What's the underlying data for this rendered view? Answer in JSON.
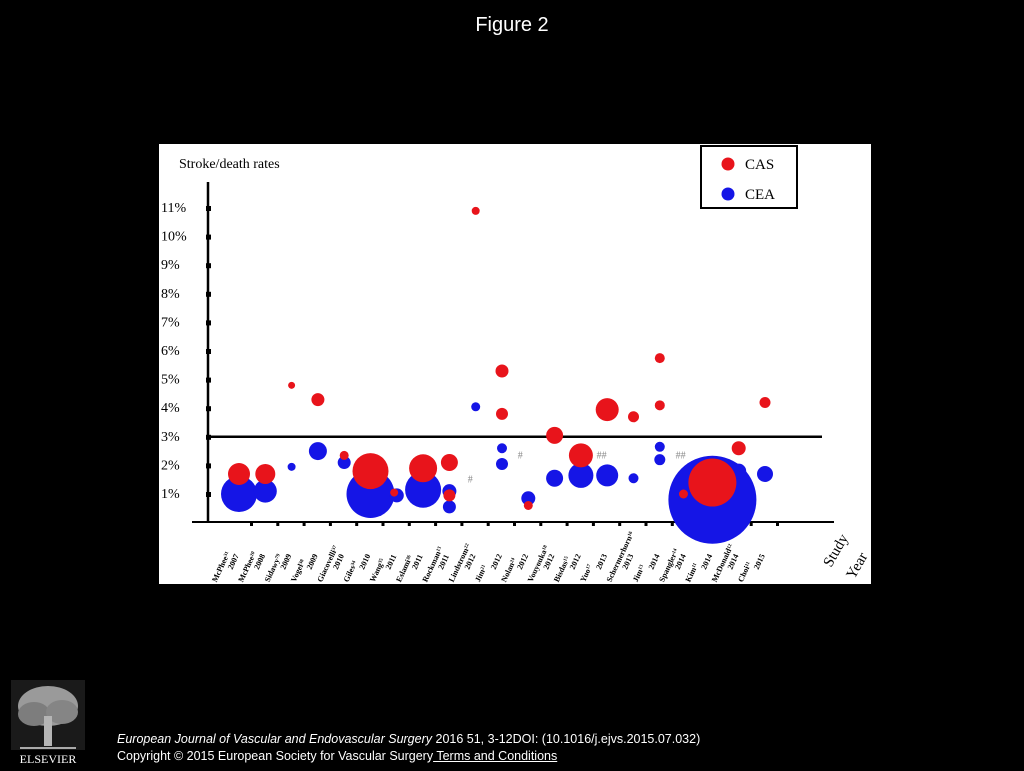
{
  "figure": {
    "title": "Figure 2"
  },
  "footer": {
    "journal": "European Journal of Vascular and Endovascular Surgery",
    "details": " 2016 51, 3-12DOI: (10.1016/j.ejvs.2015.07.032)",
    "copyright": "Copyright © 2015 European Society for Vascular Surgery",
    "terms": " Terms and Conditions",
    "publisher": "ELSEVIER"
  },
  "chart_data": {
    "type": "scatter",
    "style": "bubble",
    "ylabel": "Stroke/death rates",
    "xlabel_study": "Study",
    "xlabel_year": "Year",
    "yticks": [
      "1%",
      "2%",
      "3%",
      "4%",
      "5%",
      "6%",
      "7%",
      "8%",
      "9%",
      "10%",
      "11%"
    ],
    "threshold": 3,
    "legend_position": "top-right",
    "colors": {
      "CAS": "#e8141b",
      "CEA": "#1515e6"
    },
    "studies": [
      {
        "name": "McPhee",
        "ref": "31",
        "year": "2007"
      },
      {
        "name": "McPhee",
        "ref": "20",
        "year": "2008"
      },
      {
        "name": "Sidawy",
        "ref": "79",
        "year": "2009"
      },
      {
        "name": "Vogel",
        "ref": "38",
        "year": "2009"
      },
      {
        "name": "Giacovelli",
        "ref": "37",
        "year": "2010"
      },
      {
        "name": "Giles",
        "ref": "34",
        "year": "2010"
      },
      {
        "name": "Wang",
        "ref": "35",
        "year": "2011"
      },
      {
        "name": "Eslami",
        "ref": "36",
        "year": "2011"
      },
      {
        "name": "Rockman",
        "ref": "13",
        "year": "2011"
      },
      {
        "name": "Lindstrom",
        "ref": "22",
        "year": "2012"
      },
      {
        "name": "Jim",
        "ref": "21",
        "year": "2012"
      },
      {
        "name": "Nolan",
        "ref": "24",
        "year": "2012"
      },
      {
        "name": "Vouyouka",
        "ref": "18",
        "year": "2012"
      },
      {
        "name": "Bisdas",
        "ref": "15",
        "year": "2012"
      },
      {
        "name": "Yuo",
        "ref": "17",
        "year": "2013"
      },
      {
        "name": "Schermerhorn",
        "ref": "16",
        "year": "2013"
      },
      {
        "name": "Jim",
        "ref": "13",
        "year": "2014"
      },
      {
        "name": "Spangler",
        "ref": "14",
        "year": "2014"
      },
      {
        "name": "Kim",
        "ref": "11",
        "year": "2014"
      },
      {
        "name": "McDonald",
        "ref": "12",
        "year": "2014"
      },
      {
        "name": "Choi",
        "ref": "11",
        "year": "2015"
      }
    ],
    "series": [
      {
        "name": "CAS",
        "points": [
          {
            "x": 1,
            "y": 1.7,
            "size": 11
          },
          {
            "x": 2,
            "y": 1.7,
            "size": 10
          },
          {
            "x": 3,
            "y": 4.8,
            "size": 3.5
          },
          {
            "x": 4,
            "y": 4.3,
            "size": 6.5
          },
          {
            "x": 5,
            "y": 2.35,
            "size": 4.5
          },
          {
            "x": 6,
            "y": 1.8,
            "size": 18
          },
          {
            "x": 6.9,
            "y": 1.05,
            "size": 4
          },
          {
            "x": 8,
            "y": 1.9,
            "size": 14
          },
          {
            "x": 9,
            "y": 2.1,
            "size": 8.5
          },
          {
            "x": 9,
            "y": 0.95,
            "size": 6
          },
          {
            "x": 10,
            "y": 10.9,
            "size": 4
          },
          {
            "x": 11,
            "y": 5.3,
            "size": 6.5
          },
          {
            "x": 11,
            "y": 3.8,
            "size": 6
          },
          {
            "x": 12,
            "y": 0.6,
            "size": 4.5
          },
          {
            "x": 13,
            "y": 3.05,
            "size": 8.5
          },
          {
            "x": 14,
            "y": 2.35,
            "size": 12
          },
          {
            "x": 15,
            "y": 3.95,
            "size": 11.5
          },
          {
            "x": 16,
            "y": 3.7,
            "size": 5.5
          },
          {
            "x": 17,
            "y": 5.75,
            "size": 5
          },
          {
            "x": 17,
            "y": 4.1,
            "size": 5
          },
          {
            "x": 17.9,
            "y": 1.0,
            "size": 4.5
          },
          {
            "x": 19,
            "y": 1.4,
            "size": 24
          },
          {
            "x": 20,
            "y": 2.6,
            "size": 7
          },
          {
            "x": 21,
            "y": 4.2,
            "size": 5.5
          }
        ]
      },
      {
        "name": "CEA",
        "points": [
          {
            "x": 1,
            "y": 1.0,
            "size": 18
          },
          {
            "x": 2,
            "y": 1.1,
            "size": 11.5
          },
          {
            "x": 3,
            "y": 1.95,
            "size": 4
          },
          {
            "x": 4,
            "y": 2.5,
            "size": 9
          },
          {
            "x": 5,
            "y": 2.1,
            "size": 6.5
          },
          {
            "x": 6,
            "y": 1.0,
            "size": 24
          },
          {
            "x": 7,
            "y": 0.95,
            "size": 7
          },
          {
            "x": 8,
            "y": 1.15,
            "size": 18
          },
          {
            "x": 9,
            "y": 1.1,
            "size": 7
          },
          {
            "x": 9,
            "y": 0.55,
            "size": 6.5
          },
          {
            "x": 10,
            "y": 4.05,
            "size": 4.5
          },
          {
            "x": 11,
            "y": 2.6,
            "size": 5
          },
          {
            "x": 11,
            "y": 2.05,
            "size": 6
          },
          {
            "x": 12,
            "y": 0.85,
            "size": 7
          },
          {
            "x": 13,
            "y": 1.55,
            "size": 8.5
          },
          {
            "x": 14,
            "y": 1.65,
            "size": 12.5
          },
          {
            "x": 15,
            "y": 1.65,
            "size": 11
          },
          {
            "x": 16,
            "y": 1.55,
            "size": 5
          },
          {
            "x": 17,
            "y": 2.65,
            "size": 5
          },
          {
            "x": 17,
            "y": 2.2,
            "size": 5.5
          },
          {
            "x": 18,
            "y": 0.6,
            "size": 8.5
          },
          {
            "x": 19,
            "y": 0.8,
            "size": 44
          },
          {
            "x": 20,
            "y": 1.8,
            "size": 7.5
          },
          {
            "x": 21,
            "y": 1.7,
            "size": 8
          }
        ]
      }
    ],
    "annotations": [
      {
        "text": "#",
        "x": 9.7,
        "y": 1.4
      },
      {
        "text": "#",
        "x": 11.6,
        "y": 2.25
      },
      {
        "text": "##",
        "x": 14.6,
        "y": 2.25
      },
      {
        "text": "##",
        "x": 17.6,
        "y": 2.25
      }
    ]
  }
}
